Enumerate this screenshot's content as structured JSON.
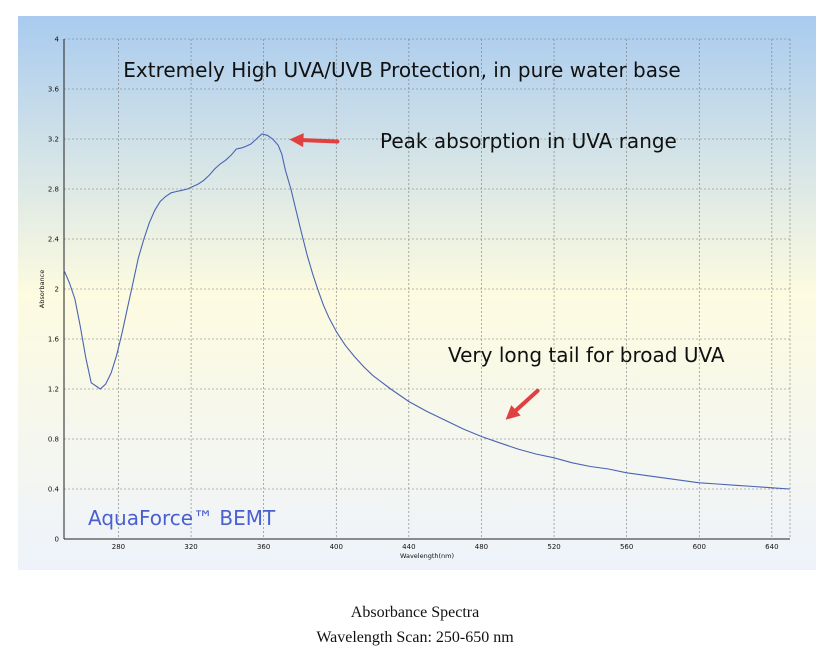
{
  "chart_data": {
    "type": "line",
    "xlabel": "Wavelength(nm)",
    "ylabel": "Absorbance",
    "xlim": [
      250,
      650
    ],
    "ylim": [
      0,
      4
    ],
    "xticks": [
      280,
      320,
      360,
      400,
      440,
      480,
      520,
      560,
      600,
      640
    ],
    "yticks": [
      0,
      0.4,
      0.8,
      1.2,
      1.6,
      2,
      2.4,
      2.8,
      3.2,
      3.6,
      4
    ],
    "grid": true,
    "series": [
      {
        "color": "#4a63b3",
        "x": [
          250,
          253,
          256,
          259,
          262,
          265,
          268,
          270,
          273,
          276,
          279,
          282,
          285,
          288,
          291,
          294,
          297,
          300,
          303,
          306,
          309,
          312,
          315,
          318,
          321,
          324,
          327,
          330,
          333,
          336,
          339,
          342,
          345,
          348,
          350,
          353,
          356,
          359,
          362,
          365,
          368,
          370,
          372,
          375,
          378,
          381,
          384,
          387,
          390,
          393,
          396,
          400,
          405,
          410,
          415,
          420,
          430,
          440,
          450,
          460,
          470,
          480,
          490,
          500,
          510,
          520,
          530,
          540,
          550,
          560,
          570,
          580,
          590,
          600,
          610,
          620,
          630,
          640,
          650
        ],
        "y": [
          2.15,
          2.05,
          1.92,
          1.7,
          1.45,
          1.25,
          1.22,
          1.2,
          1.24,
          1.33,
          1.47,
          1.65,
          1.85,
          2.05,
          2.25,
          2.4,
          2.53,
          2.63,
          2.7,
          2.74,
          2.77,
          2.78,
          2.79,
          2.8,
          2.82,
          2.84,
          2.87,
          2.91,
          2.96,
          3.0,
          3.03,
          3.07,
          3.12,
          3.13,
          3.14,
          3.16,
          3.2,
          3.24,
          3.23,
          3.2,
          3.15,
          3.08,
          2.95,
          2.8,
          2.62,
          2.44,
          2.27,
          2.12,
          1.99,
          1.87,
          1.77,
          1.66,
          1.55,
          1.46,
          1.38,
          1.31,
          1.2,
          1.1,
          1.02,
          0.95,
          0.88,
          0.82,
          0.77,
          0.72,
          0.68,
          0.65,
          0.61,
          0.58,
          0.56,
          0.53,
          0.51,
          0.49,
          0.47,
          0.45,
          0.44,
          0.43,
          0.42,
          0.41,
          0.4
        ]
      }
    ],
    "annotations": {
      "title": "Extremely High UVA/UVB Protection, in pure water base",
      "peak": "Peak absorption in UVA range",
      "tail": "Very long tail for broad UVA",
      "brand": "AquaForce™ BEMT"
    },
    "arrow_color": "#e04040"
  },
  "caption": {
    "line1": "Absorbance Spectra",
    "line2": "Wavelength Scan: 250-650 nm"
  }
}
